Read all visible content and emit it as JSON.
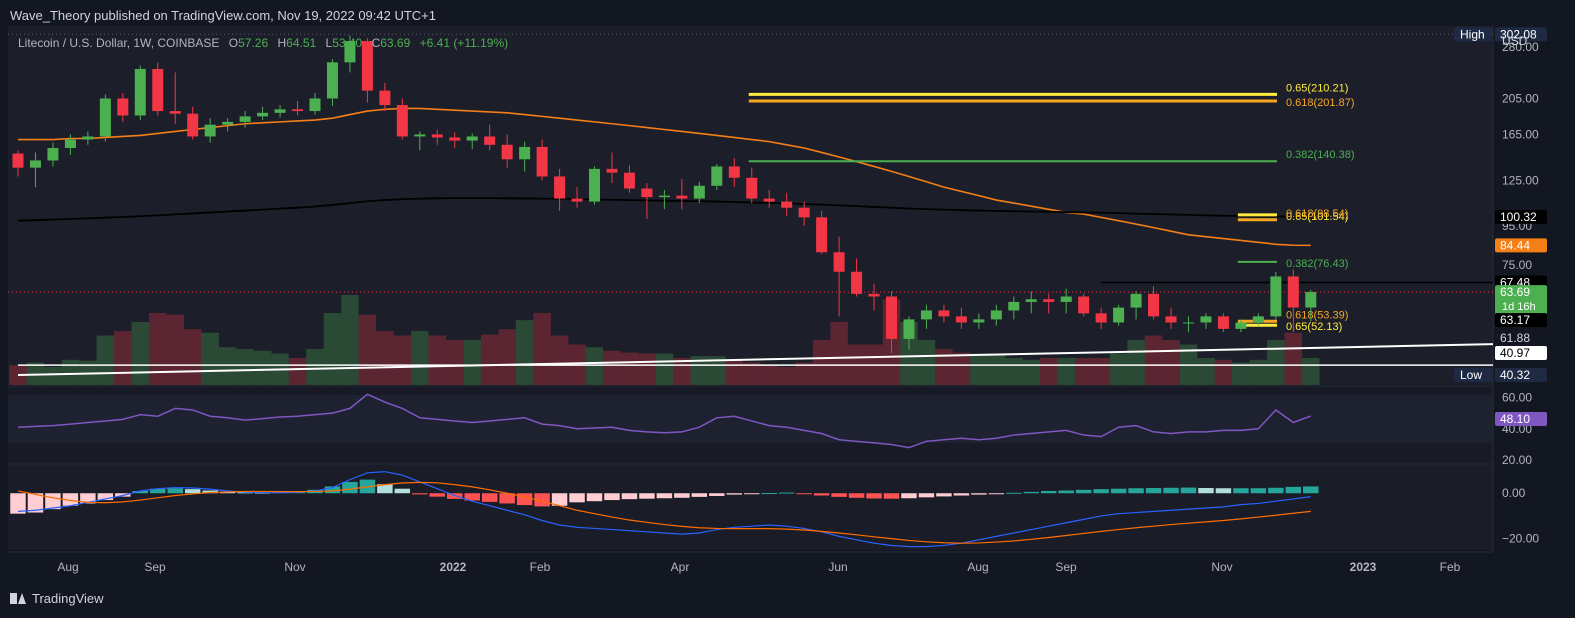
{
  "publisher": "Wave_Theory published on TradingView.com, Nov 19, 2022 09:42 UTC+1",
  "footer_brand": "TradingView",
  "legend": {
    "symbol": "Litecoin / U.S. Dollar, 1W, COINBASE",
    "open_label": "O",
    "open": "57.26",
    "high_label": "H",
    "high": "64.51",
    "low_label": "L",
    "low": "53.40",
    "close_label": "C",
    "close": "63.69",
    "change": "+6.41 (+11.19%)"
  },
  "currency": "USD",
  "colors": {
    "background": "#131722",
    "up": "#4caf50",
    "down": "#f23645",
    "ma_orange": "#f57f17",
    "ma_black": "#000000",
    "fib_yellow": "#ffeb3b",
    "fib_orange": "#f5a623",
    "fib_green": "#4caf50",
    "rsi": "#7e57c2",
    "macd": "#2962ff",
    "signal": "#ff6d00"
  },
  "chart_data": [
    {
      "type": "candlestick",
      "title": "",
      "price_scale": "log",
      "ylim": [
        37,
        310
      ],
      "y_ticks": [
        "280.00",
        "205.00",
        "165.00",
        "125.00",
        "95.00",
        "75.00"
      ],
      "x_ticks": [
        "Aug",
        "Sep",
        "Nov",
        "2022",
        "Feb",
        "Apr",
        "Jun",
        "Aug",
        "Sep",
        "Nov",
        "2023",
        "Feb"
      ],
      "x_ticks_bold": [
        "2022",
        "2023"
      ],
      "candles": [
        [
          147,
          150,
          128,
          135
        ],
        [
          135,
          148,
          120,
          141
        ],
        [
          141,
          157,
          136,
          152
        ],
        [
          152,
          165,
          146,
          160
        ],
        [
          160,
          168,
          155,
          163
        ],
        [
          163,
          210,
          158,
          205
        ],
        [
          205,
          212,
          178,
          185
        ],
        [
          185,
          250,
          180,
          245
        ],
        [
          245,
          255,
          185,
          190
        ],
        [
          190,
          240,
          176,
          187
        ],
        [
          187,
          195,
          160,
          163
        ],
        [
          163,
          182,
          157,
          175
        ],
        [
          175,
          182,
          168,
          178
        ],
        [
          178,
          190,
          172,
          184
        ],
        [
          184,
          195,
          180,
          188
        ],
        [
          188,
          197,
          183,
          192
        ],
        [
          192,
          202,
          185,
          190
        ],
        [
          190,
          212,
          186,
          205
        ],
        [
          205,
          260,
          196,
          255
        ],
        [
          255,
          300,
          240,
          290
        ],
        [
          290,
          295,
          200,
          215
        ],
        [
          215,
          225,
          190,
          197
        ],
        [
          197,
          205,
          160,
          163
        ],
        [
          163,
          168,
          150,
          165
        ],
        [
          165,
          170,
          155,
          162
        ],
        [
          162,
          167,
          152,
          159
        ],
        [
          159,
          166,
          151,
          163
        ],
        [
          163,
          175,
          150,
          155
        ],
        [
          155,
          165,
          135,
          142
        ],
        [
          142,
          158,
          132,
          153
        ],
        [
          153,
          160,
          125,
          128
        ],
        [
          128,
          134,
          104,
          112
        ],
        [
          112,
          120,
          106,
          110
        ],
        [
          110,
          136,
          108,
          134
        ],
        [
          134,
          148,
          123,
          131
        ],
        [
          131,
          137,
          116,
          119
        ],
        [
          119,
          123,
          99,
          113
        ],
        [
          113,
          118,
          105,
          114
        ],
        [
          114,
          126,
          105,
          112
        ],
        [
          112,
          124,
          109,
          121
        ],
        [
          121,
          138,
          118,
          136
        ],
        [
          136,
          143,
          120,
          127
        ],
        [
          127,
          135,
          109,
          112
        ],
        [
          112,
          118,
          106,
          110
        ],
        [
          110,
          116,
          101,
          106
        ],
        [
          106,
          110,
          95,
          100
        ],
        [
          100,
          104,
          80,
          81
        ],
        [
          81,
          89,
          55,
          72
        ],
        [
          72,
          78,
          62,
          63
        ],
        [
          63,
          67,
          57,
          62
        ],
        [
          62,
          64,
          44,
          48
        ],
        [
          48,
          55,
          45,
          54
        ],
        [
          54,
          59,
          51,
          57
        ],
        [
          57,
          59,
          53,
          55
        ],
        [
          55,
          58,
          51,
          53
        ],
        [
          53,
          56,
          51,
          54
        ],
        [
          54,
          59,
          52,
          57
        ],
        [
          57,
          62,
          54,
          60
        ],
        [
          60,
          64,
          56,
          61
        ],
        [
          61,
          63,
          56,
          60
        ],
        [
          60,
          65,
          56,
          62
        ],
        [
          62,
          63,
          55,
          56
        ],
        [
          56,
          58,
          51,
          53
        ],
        [
          53,
          59,
          52,
          58
        ],
        [
          58,
          64,
          54,
          63
        ],
        [
          63,
          66,
          54,
          55
        ],
        [
          55,
          58,
          51,
          53
        ],
        [
          53,
          55,
          50,
          53
        ],
        [
          53,
          56,
          51,
          55
        ],
        [
          55,
          56,
          50,
          51
        ],
        [
          51,
          54,
          50,
          53
        ],
        [
          53,
          56,
          52,
          55
        ],
        [
          55,
          72,
          54,
          70
        ],
        [
          70,
          73,
          50,
          58
        ],
        [
          58,
          64.51,
          53.4,
          63.69
        ]
      ],
      "series": [
        {
          "name": "",
          "kind": "ma_orange",
          "start_index": 0,
          "values": [
            160,
            160,
            160,
            161,
            161,
            162,
            163,
            164,
            166,
            168,
            170,
            172,
            174,
            176,
            177,
            178,
            179,
            180,
            182,
            186,
            190,
            192,
            193,
            193,
            192,
            191,
            190,
            189,
            188,
            186,
            184,
            182,
            180,
            178,
            176,
            174,
            172,
            170,
            168,
            166,
            164,
            162,
            160,
            158,
            155,
            152,
            148,
            144,
            140,
            136,
            132,
            128,
            124,
            120,
            117,
            114,
            111,
            109,
            107,
            105,
            103,
            102,
            100,
            98,
            96,
            94,
            92,
            90,
            89,
            88,
            87,
            86,
            85,
            84.5,
            84.44
          ]
        },
        {
          "name": "",
          "kind": "ma_black",
          "start_index": 0,
          "values": [
            98,
            98.3,
            98.7,
            99,
            99.4,
            99.8,
            100.2,
            100.7,
            101.2,
            101.8,
            102.4,
            103,
            103.6,
            104.2,
            104.8,
            105.4,
            106,
            106.8,
            107.8,
            109,
            110.2,
            111,
            111.6,
            112,
            112.2,
            112.3,
            112.3,
            112.3,
            112.2,
            112.1,
            112,
            111.8,
            111.6,
            111.4,
            111.2,
            111,
            110.8,
            110.6,
            110.4,
            110.2,
            110,
            109.7,
            109.4,
            109.1,
            108.8,
            108.4,
            108,
            107.5,
            107,
            106.5,
            106,
            105.5,
            105.1,
            104.8,
            104.5,
            104.2,
            104,
            103.8,
            103.6,
            103.4,
            103.2,
            103,
            102.8,
            102.6,
            102.3,
            102,
            101.8,
            101.5,
            101.2,
            101,
            100.8,
            100.6,
            100.5,
            100.4,
            100.32
          ]
        }
      ],
      "fib_levels": [
        {
          "label": "0.65(210.21)",
          "value": 210.21,
          "from_index": 42,
          "to_index": 74,
          "kind": "fib_yellow"
        },
        {
          "label": "0.618(201.87)",
          "value": 201.87,
          "from_index": 42,
          "to_index": 74,
          "kind": "fib_orange"
        },
        {
          "label": "0.382(140.38)",
          "value": 140.38,
          "from_index": 42,
          "to_index": 74,
          "kind": "fib_green"
        },
        {
          "label": "0.65(101.54)",
          "value": 101.54,
          "from_index": 70,
          "to_index": 74,
          "kind": "fib_yellow"
        },
        {
          "label": "0.618(98.54)",
          "value": 98.54,
          "from_index": 70,
          "to_index": 74,
          "kind": "fib_orange"
        },
        {
          "label": "0.382(76.43)",
          "value": 76.43,
          "from_index": 70,
          "to_index": 74,
          "kind": "fib_green"
        },
        {
          "label": "0.618(53.39)",
          "value": 53.39,
          "from_index": 70,
          "to_index": 74,
          "kind": "fib_orange"
        },
        {
          "label": "0.65(52.13)",
          "value": 52.13,
          "from_index": 70,
          "to_index": 74,
          "kind": "fib_yellow"
        }
      ],
      "horizontal_levels": [
        {
          "value": 67.48,
          "from_index": 62,
          "kind": "black"
        },
        {
          "value": 40.97,
          "from_index": 0,
          "kind": "white"
        }
      ],
      "trendline": {
        "from": [
          0,
          38.6
        ],
        "to": [
          77,
          46.5
        ]
      },
      "price_labels": [
        {
          "text": "High",
          "value": 302.08,
          "badge": "302.08",
          "kind": "high"
        },
        {
          "text": "",
          "value": 100.32,
          "badge": "100.32",
          "kind": "black"
        },
        {
          "text": "",
          "value": 84.44,
          "badge": "84.44",
          "kind": "orange"
        },
        {
          "text": "",
          "value": 67.48,
          "badge": "67.48",
          "kind": "black"
        },
        {
          "text": "",
          "value": 63.69,
          "badge": "63.69",
          "sub": "1d 16h",
          "kind": "green"
        },
        {
          "text": "",
          "value": 53.4,
          "badge": "63.17",
          "kind": "black"
        },
        {
          "text": "",
          "value": 46.2,
          "badge": "61.88",
          "kind": "plain"
        },
        {
          "text": "",
          "value": 40.97,
          "badge": "40.97",
          "kind": "white"
        },
        {
          "text": "Low",
          "value": 38.6,
          "badge": "40.32",
          "kind": "low"
        }
      ],
      "volume": [
        0.22,
        0.25,
        0.2,
        0.28,
        0.27,
        0.55,
        0.6,
        0.7,
        0.8,
        0.78,
        0.62,
        0.58,
        0.42,
        0.4,
        0.38,
        0.35,
        0.3,
        0.4,
        0.8,
        1.0,
        0.78,
        0.6,
        0.55,
        0.6,
        0.55,
        0.5,
        0.5,
        0.56,
        0.62,
        0.72,
        0.8,
        0.55,
        0.45,
        0.42,
        0.38,
        0.36,
        0.35,
        0.35,
        0.3,
        0.32,
        0.32,
        0.28,
        0.25,
        0.22,
        0.2,
        0.25,
        0.5,
        0.7,
        0.45,
        0.45,
        0.95,
        0.7,
        0.5,
        0.4,
        0.36,
        0.35,
        0.35,
        0.3,
        0.28,
        0.3,
        0.3,
        0.3,
        0.3,
        0.35,
        0.5,
        0.55,
        0.5,
        0.45,
        0.3,
        0.28,
        0.25,
        0.28,
        0.5,
        0.58,
        0.3
      ]
    },
    {
      "type": "line",
      "title": "",
      "ylim": [
        15,
        66
      ],
      "y_ticks": [
        "60.00",
        "40.00",
        "20.00"
      ],
      "current_badge": "48.10",
      "series": [
        {
          "name": "",
          "values": [
            41,
            41.5,
            42,
            43,
            44,
            45,
            46,
            49,
            48,
            53,
            52,
            48,
            47,
            45.5,
            46.5,
            47.5,
            48,
            49,
            50,
            53,
            62,
            57,
            53,
            47,
            46,
            45,
            44,
            45,
            46,
            47,
            43,
            42,
            40,
            40.5,
            41,
            39,
            38,
            37.5,
            38,
            41,
            47,
            48,
            45,
            42,
            41,
            39,
            37,
            33,
            32,
            31,
            30,
            28,
            32,
            33,
            34,
            33,
            34,
            36,
            37,
            38,
            39,
            36,
            35,
            41,
            42,
            38,
            37,
            38,
            38,
            39,
            39,
            40,
            52,
            44,
            48.1
          ]
        }
      ]
    },
    {
      "type": "bar",
      "title": "",
      "ylim": [
        -25,
        12
      ],
      "y_ticks": [
        "0.00",
        "−20.00"
      ],
      "histogram": [
        -9,
        -8.5,
        -7,
        -5.5,
        -4.5,
        -3,
        -1.5,
        1,
        2,
        2.2,
        1.8,
        1.2,
        0.6,
        0.4,
        0.3,
        0.5,
        1,
        1.5,
        3,
        5,
        6,
        4,
        2,
        -0.5,
        -1.5,
        -2.5,
        -3.2,
        -3.8,
        -4.5,
        -5.2,
        -5.8,
        -5.5,
        -4,
        -3.5,
        -3,
        -2.6,
        -2.4,
        -2.2,
        -2,
        -1.6,
        -1.2,
        -0.6,
        -0.2,
        0.1,
        0.3,
        -0.3,
        -1,
        -1.6,
        -2,
        -2.3,
        -2.4,
        -2.2,
        -1.8,
        -1.4,
        -1,
        -0.6,
        -0.2,
        0.2,
        0.6,
        1,
        1.2,
        1.5,
        1.8,
        2,
        2.2,
        2.3,
        2.4,
        2.5,
        2.3,
        2.2,
        2.2,
        2.2,
        2.4,
        2.8,
        3
      ],
      "series": [
        {
          "name": "",
          "kind": "macd",
          "values": [
            -8,
            -7.5,
            -6.5,
            -5.5,
            -4,
            -2.5,
            -1,
            1,
            2,
            2.5,
            2.3,
            1.8,
            1,
            0.5,
            0.3,
            0.2,
            0.4,
            1,
            2.5,
            6,
            9,
            9.5,
            8,
            5,
            2,
            -1,
            -3.5,
            -5.5,
            -7.5,
            -9.5,
            -12,
            -14,
            -15,
            -15.5,
            -16,
            -16.5,
            -17,
            -17.5,
            -18,
            -17.5,
            -16,
            -15,
            -14.5,
            -14,
            -14.5,
            -15.5,
            -17,
            -19,
            -20.5,
            -22,
            -23,
            -23.5,
            -23.5,
            -23,
            -22,
            -20.5,
            -19,
            -17.5,
            -16,
            -14.5,
            -13,
            -11.5,
            -10,
            -9,
            -8.5,
            -8,
            -7.5,
            -7,
            -6.5,
            -6,
            -5,
            -4.5,
            -3.5,
            -2.5,
            -1.5
          ]
        },
        {
          "name": "",
          "kind": "signal",
          "values": [
            1,
            -0.5,
            -2,
            -3.2,
            -4,
            -4.2,
            -3.8,
            -3,
            -2,
            -1,
            -0.3,
            0.3,
            0.6,
            0.8,
            0.8,
            0.7,
            0.7,
            0.8,
            1,
            1.8,
            2.8,
            3.8,
            4.5,
            4.8,
            4.6,
            3.8,
            2.8,
            1.5,
            0,
            -1.6,
            -3.5,
            -5.5,
            -7.5,
            -9,
            -10.5,
            -11.8,
            -12.8,
            -13.8,
            -14.6,
            -15.2,
            -15.5,
            -15.6,
            -15.6,
            -15.6,
            -15.8,
            -16.2,
            -16.8,
            -17.5,
            -18.3,
            -19.2,
            -20,
            -20.8,
            -21.4,
            -21.8,
            -22,
            -21.9,
            -21.5,
            -21,
            -20.3,
            -19.5,
            -18.6,
            -17.7,
            -16.8,
            -16,
            -15.2,
            -14.5,
            -13.8,
            -13.2,
            -12.6,
            -12,
            -11.3,
            -10.5,
            -9.7,
            -8.8,
            -8
          ]
        }
      ]
    }
  ]
}
